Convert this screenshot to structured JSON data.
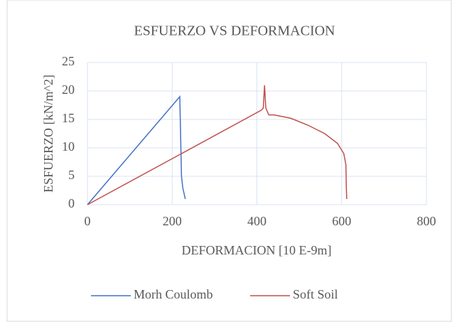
{
  "chart_data": {
    "type": "line",
    "title": "ESFUERZO VS DEFORMACION",
    "x_label": "DEFORMACION  [10 E-9m]",
    "y_label": "ESFUERZO  [kN/m^2]",
    "xlim": [
      0,
      800
    ],
    "xticks": [
      0,
      200,
      400,
      600,
      800
    ],
    "ylim": [
      0,
      25
    ],
    "yticks": [
      0,
      5,
      10,
      15,
      20,
      25
    ],
    "grid": true,
    "legend": "bottom",
    "series": [
      {
        "name": "Morh Coulomb",
        "color": "#4472c4",
        "x": [
          0,
          218,
          220,
          222,
          225,
          231
        ],
        "values": [
          0,
          19,
          12,
          5,
          3,
          1
        ]
      },
      {
        "name": "Soft Soil",
        "color": "#c0504d",
        "x": [
          0,
          410,
          415,
          418,
          421,
          428,
          440,
          480,
          520,
          560,
          590,
          605,
          610,
          611,
          612
        ],
        "values": [
          0,
          16.6,
          17,
          21,
          17,
          15.8,
          15.8,
          15.2,
          14,
          12.5,
          10.8,
          9,
          7,
          3,
          1
        ]
      }
    ]
  }
}
